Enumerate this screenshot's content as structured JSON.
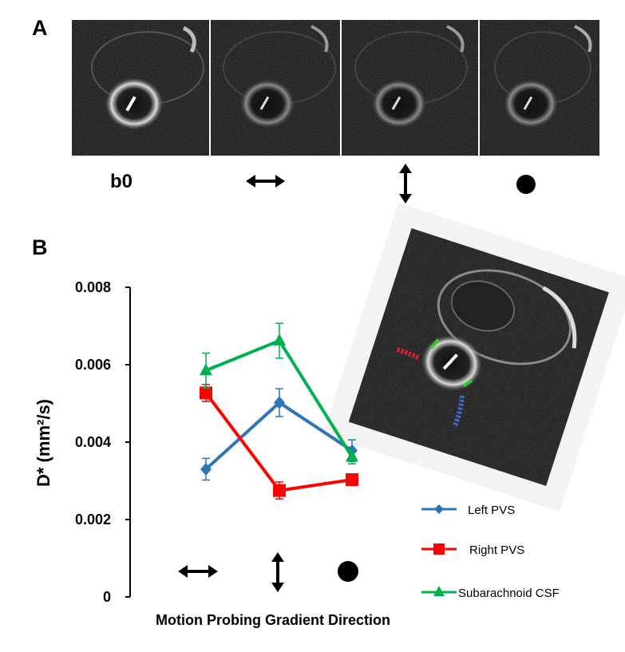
{
  "panels": {
    "a_label": "A",
    "b_label": "B"
  },
  "panel_a": {
    "images": [
      "b0",
      "left-right",
      "up-down",
      "through-plane"
    ],
    "b0_label": "b0"
  },
  "colors": {
    "left": "#2e75b6",
    "right": "#ff0000",
    "csf": "#00b050"
  },
  "chart_data": {
    "type": "line",
    "xlabel": "Motion Probing Gradient Direction",
    "ylabel": "D* (mm²/s)",
    "ylim": [
      0,
      0.008
    ],
    "yticks": [
      "0",
      "0.002",
      "0.004",
      "0.006",
      "0.008"
    ],
    "x_categories": [
      "left-right arrow",
      "up-down arrow",
      "through-plane dot"
    ],
    "series": [
      {
        "name": "Left PVS",
        "marker": "diamond",
        "color": "#2e75b6",
        "values": [
          0.0033,
          0.00502,
          0.00378
        ],
        "errors": [
          0.00028,
          0.00036,
          0.00028
        ]
      },
      {
        "name": "Right PVS",
        "marker": "square",
        "color": "#ff0000",
        "values": [
          0.00527,
          0.00275,
          0.00303
        ],
        "errors": [
          0.00022,
          0.00022,
          0.0001
        ]
      },
      {
        "name": "Subarachnoid CSF",
        "marker": "triangle",
        "color": "#00b050",
        "values": [
          0.00585,
          0.00662,
          0.00362
        ],
        "errors": [
          0.00045,
          0.00045,
          0.00018
        ]
      }
    ]
  }
}
